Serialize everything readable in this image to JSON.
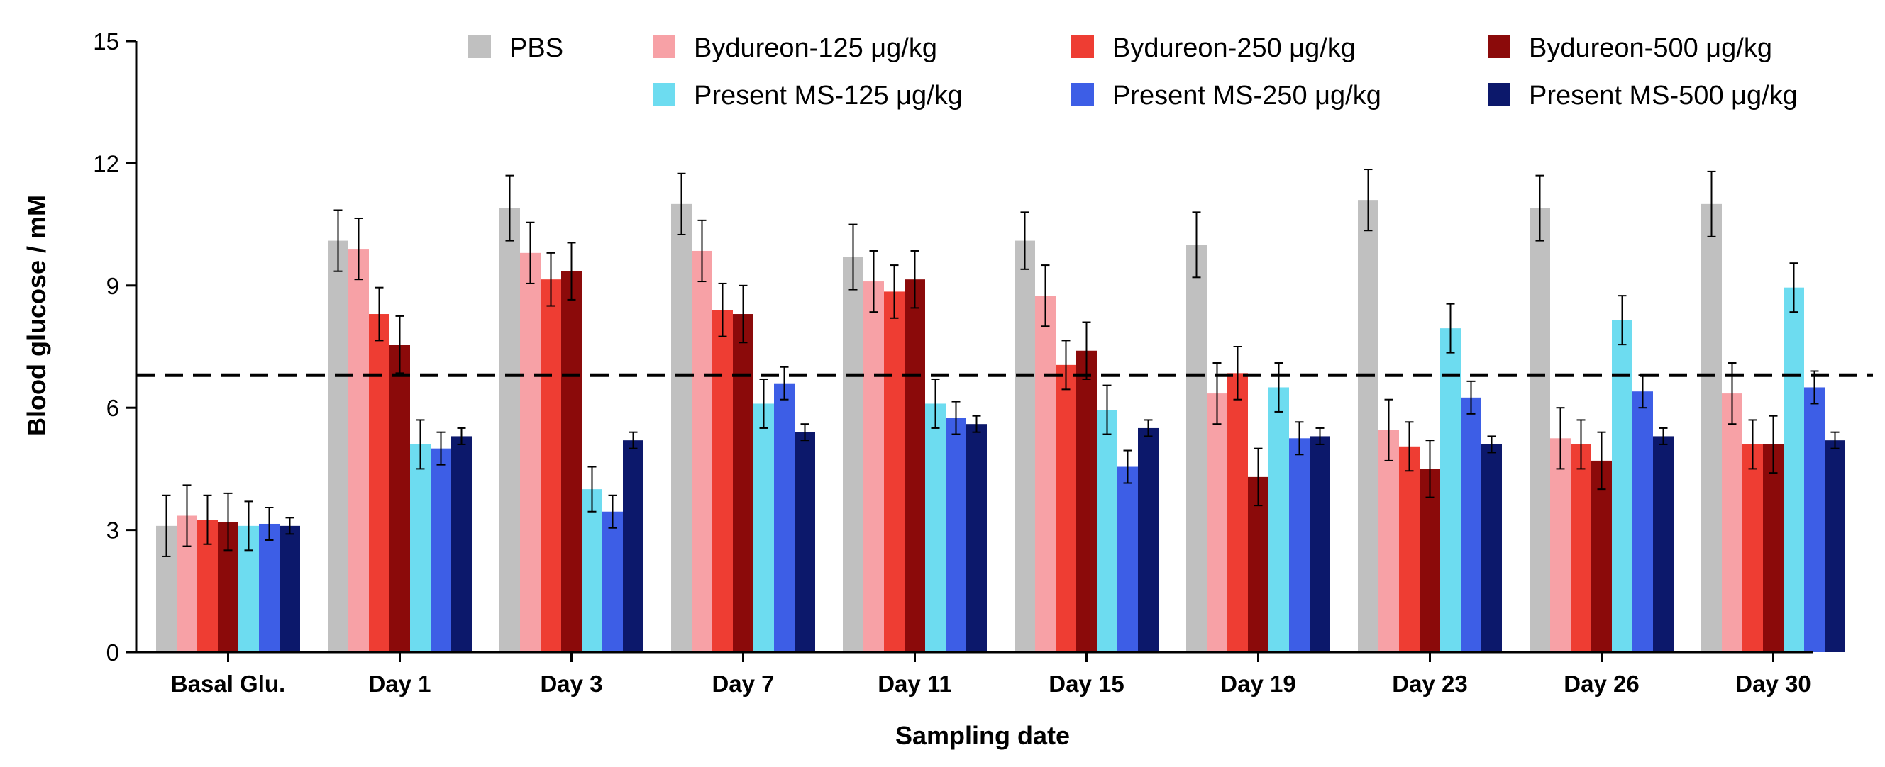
{
  "chart_data": {
    "type": "bar",
    "title": "",
    "xlabel": "Sampling date",
    "ylabel": "Blood glucose / mM",
    "ylim": [
      0,
      15
    ],
    "yticks": [
      0,
      3,
      6,
      9,
      12,
      15
    ],
    "grid": false,
    "legend_position": "top",
    "reference_line": {
      "y": 6.8,
      "style": "dashed",
      "color": "#000000"
    },
    "categories": [
      "Basal Glu.",
      "Day 1",
      "Day 3",
      "Day 7",
      "Day 11",
      "Day 15",
      "Day 19",
      "Day 23",
      "Day 26",
      "Day 30"
    ],
    "series": [
      {
        "name": "PBS",
        "color": "#c0c0c0",
        "values": [
          3.1,
          10.1,
          10.9,
          11.0,
          9.7,
          10.1,
          10.0,
          11.1,
          10.9,
          11.0
        ],
        "errors": [
          0.75,
          0.75,
          0.8,
          0.75,
          0.8,
          0.7,
          0.8,
          0.75,
          0.8,
          0.8
        ]
      },
      {
        "name": "Bydureon-125 μg/kg",
        "color": "#f7a1a6",
        "values": [
          3.35,
          9.9,
          9.8,
          9.85,
          9.1,
          8.75,
          6.35,
          5.45,
          5.25,
          6.35
        ],
        "errors": [
          0.75,
          0.75,
          0.75,
          0.75,
          0.75,
          0.75,
          0.75,
          0.75,
          0.75,
          0.75
        ]
      },
      {
        "name": "Bydureon-250 μg/kg",
        "color": "#ee3d33",
        "values": [
          3.25,
          8.3,
          9.15,
          8.4,
          8.85,
          7.05,
          6.85,
          5.05,
          5.1,
          5.1
        ],
        "errors": [
          0.6,
          0.65,
          0.65,
          0.65,
          0.65,
          0.6,
          0.65,
          0.6,
          0.6,
          0.6
        ]
      },
      {
        "name": "Bydureon-500 μg/kg",
        "color": "#8b0a0a",
        "values": [
          3.2,
          7.55,
          9.35,
          8.3,
          9.15,
          7.4,
          4.3,
          4.5,
          4.7,
          5.1
        ],
        "errors": [
          0.7,
          0.7,
          0.7,
          0.7,
          0.7,
          0.7,
          0.7,
          0.7,
          0.7,
          0.7
        ]
      },
      {
        "name": "Present MS-125 μg/kg",
        "color": "#6ddcf0",
        "values": [
          3.1,
          5.1,
          4.0,
          6.1,
          6.1,
          5.95,
          6.5,
          7.95,
          8.15,
          8.95
        ],
        "errors": [
          0.6,
          0.6,
          0.55,
          0.6,
          0.6,
          0.6,
          0.6,
          0.6,
          0.6,
          0.6
        ]
      },
      {
        "name": "Present MS-250 μg/kg",
        "color": "#3d5ee6",
        "values": [
          3.15,
          5.0,
          3.45,
          6.6,
          5.75,
          4.55,
          5.25,
          6.25,
          6.4,
          6.5
        ],
        "errors": [
          0.4,
          0.4,
          0.4,
          0.4,
          0.4,
          0.4,
          0.4,
          0.4,
          0.4,
          0.4
        ]
      },
      {
        "name": "Present MS-500 μg/kg",
        "color": "#0c186b",
        "values": [
          3.1,
          5.3,
          5.2,
          5.4,
          5.6,
          5.5,
          5.3,
          5.1,
          5.3,
          5.2
        ],
        "errors": [
          0.2,
          0.2,
          0.2,
          0.2,
          0.2,
          0.2,
          0.2,
          0.2,
          0.2,
          0.2
        ]
      }
    ]
  }
}
